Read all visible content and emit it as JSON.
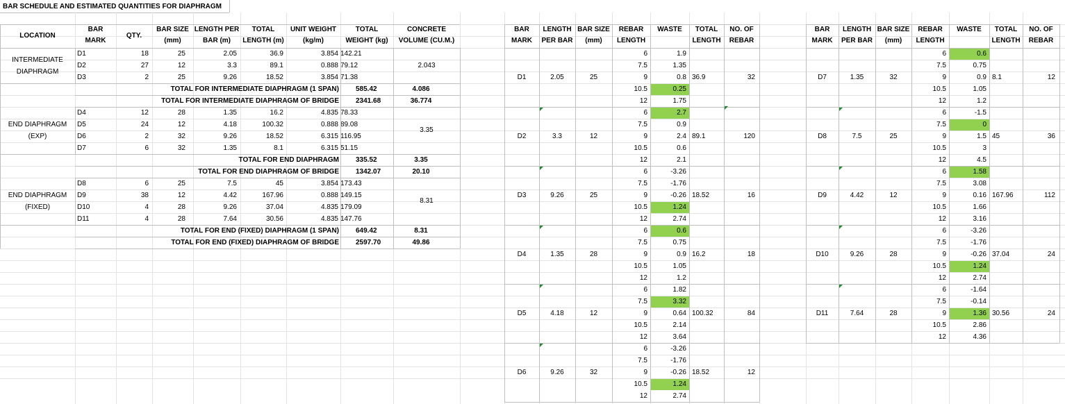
{
  "sheet_title": "BAR SCHEDULE AND ESTIMATED QUANTITIES FOR DIAPHRAGM",
  "main_table": {
    "headers": [
      "LOCATION",
      "BAR\nMARK",
      "QTY.",
      "BAR SIZE\n(mm)",
      "LENGTH PER\nBAR (m)",
      "TOTAL\nLENGTH (m)",
      "UNIT WEIGHT\n(kg/m)",
      "TOTAL\nWEIGHT (kg)",
      "CONCRETE\nVOLUME (CU.M.)"
    ],
    "groups": [
      {
        "location": "INTERMEDIATE\nDIAPHRAGM",
        "concrete": "2.043",
        "rows": [
          [
            "D1",
            "18",
            "25",
            "2.05",
            "36.9",
            "3.854",
            "142.21"
          ],
          [
            "D2",
            "27",
            "12",
            "3.3",
            "89.1",
            "0.888",
            "79.12"
          ],
          [
            "D3",
            "2",
            "25",
            "9.26",
            "18.52",
            "3.854",
            "71.38"
          ]
        ],
        "totals": [
          {
            "label": "TOTAL FOR INTERMEDIATE DIAPHRAGM (1 SPAN)",
            "weight": "585.42",
            "volume": "4.086"
          },
          {
            "label": "TOTAL FOR INTERMEDIATE DIAPHRAGM OF BRIDGE",
            "weight": "2341.68",
            "volume": "36.774"
          }
        ]
      },
      {
        "location": "END DIAPHRAGM\n(EXP)",
        "concrete": "3.35",
        "rows": [
          [
            "D4",
            "12",
            "28",
            "1.35",
            "16.2",
            "4.835",
            "78.33"
          ],
          [
            "D5",
            "24",
            "12",
            "4.18",
            "100.32",
            "0.888",
            "89.08"
          ],
          [
            "D6",
            "2",
            "32",
            "9.26",
            "18.52",
            "6.315",
            "116.95"
          ],
          [
            "D7",
            "6",
            "32",
            "1.35",
            "8.1",
            "6.315",
            "51.15"
          ]
        ],
        "totals": [
          {
            "label": "TOTAL FOR END DIAPHRAGM",
            "weight": "335.52",
            "volume": "3.35"
          },
          {
            "label": "TOTAL FOR END DIAPHRAGM OF BRIDGE",
            "weight": "1342.07",
            "volume": "20.10"
          }
        ]
      },
      {
        "location": "END DIAPHRAGM\n(FIXED)",
        "concrete": "8.31",
        "rows": [
          [
            "D8",
            "6",
            "25",
            "7.5",
            "45",
            "3.854",
            "173.43"
          ],
          [
            "D9",
            "38",
            "12",
            "4.42",
            "167.96",
            "0.888",
            "149.15"
          ],
          [
            "D10",
            "4",
            "28",
            "9.26",
            "37.04",
            "4.835",
            "179.09"
          ],
          [
            "D11",
            "4",
            "28",
            "7.64",
            "30.56",
            "4.835",
            "147.76"
          ]
        ],
        "totals": [
          {
            "label": "TOTAL FOR END (FIXED)  DIAPHRAGM (1 SPAN)",
            "weight": "649.42",
            "volume": "8.31"
          },
          {
            "label": "TOTAL FOR END (FIXED)  DIAPHRAGM OF BRIDGE",
            "weight": "2597.70",
            "volume": "49.86"
          }
        ]
      }
    ]
  },
  "waste_headers": [
    "BAR\nMARK",
    "LENGTH\nPER BAR",
    "BAR SIZE\n(mm)",
    "REBAR\nLENGTH",
    "WASTE",
    "TOTAL\nLENGTH",
    "NO. OF\nREBAR"
  ],
  "stock_lengths": [
    "6",
    "7.5",
    "9",
    "10.5",
    "12"
  ],
  "waste_left": [
    {
      "mark": "D1",
      "len": "2.05",
      "size": "25",
      "waste": [
        "1.9",
        "1.35",
        "0.8",
        "0.25",
        "1.75"
      ],
      "hl": 3,
      "total": "36.9",
      "count": "32"
    },
    {
      "mark": "D2",
      "len": "3.3",
      "size": "12",
      "waste": [
        "2.7",
        "0.9",
        "2.4",
        "0.6",
        "2.1"
      ],
      "hl": 0,
      "total": "89.1",
      "count": "120"
    },
    {
      "mark": "D3",
      "len": "9.26",
      "size": "25",
      "waste": [
        "-3.26",
        "-1.76",
        "-0.26",
        "1.24",
        "2.74"
      ],
      "hl": 3,
      "total": "18.52",
      "count": "16"
    },
    {
      "mark": "D4",
      "len": "1.35",
      "size": "28",
      "waste": [
        "0.6",
        "0.75",
        "0.9",
        "1.05",
        "1.2"
      ],
      "hl": 0,
      "total": "16.2",
      "count": "18"
    },
    {
      "mark": "D5",
      "len": "4.18",
      "size": "12",
      "waste": [
        "1.82",
        "3.32",
        "0.64",
        "2.14",
        "3.64"
      ],
      "hl": 1,
      "total": "100.32",
      "count": "84"
    },
    {
      "mark": "D6",
      "len": "9.26",
      "size": "32",
      "waste": [
        "-3.26",
        "-1.76",
        "-0.26",
        "1.24",
        "2.74"
      ],
      "hl": 3,
      "total": "18.52",
      "count": "12"
    }
  ],
  "waste_right": [
    {
      "mark": "D7",
      "len": "1.35",
      "size": "32",
      "waste": [
        "0.6",
        "0.75",
        "0.9",
        "1.05",
        "1.2"
      ],
      "hl": 0,
      "total": "8.1",
      "count": "12"
    },
    {
      "mark": "D8",
      "len": "7.5",
      "size": "25",
      "waste": [
        "-1.5",
        "0",
        "1.5",
        "3",
        "4.5"
      ],
      "hl": 1,
      "total": "45",
      "count": "36"
    },
    {
      "mark": "D9",
      "len": "4.42",
      "size": "12",
      "waste": [
        "1.58",
        "3.08",
        "0.16",
        "1.66",
        "3.16"
      ],
      "hl": 0,
      "total": "167.96",
      "count": "112"
    },
    {
      "mark": "D10",
      "len": "9.26",
      "size": "28",
      "waste": [
        "-3.26",
        "-1.76",
        "-0.26",
        "1.24",
        "2.74"
      ],
      "hl": 3,
      "total": "37.04",
      "count": "24"
    },
    {
      "mark": "D11",
      "len": "7.64",
      "size": "28",
      "waste": [
        "-1.64",
        "-0.14",
        "1.36",
        "2.86",
        "4.36"
      ],
      "hl": 2,
      "total": "30.56",
      "count": "24"
    }
  ]
}
